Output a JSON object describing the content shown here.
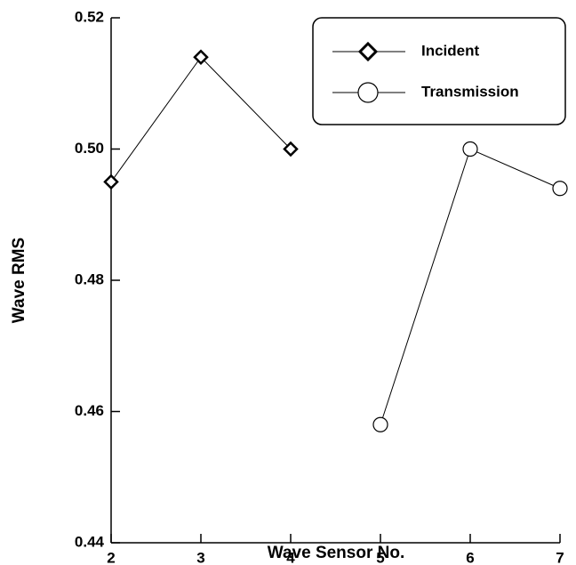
{
  "chart_data": {
    "type": "line",
    "x_label": "Wave Sensor No.",
    "y_label": "Wave RMS",
    "x": [
      2,
      3,
      4,
      5,
      6,
      7
    ],
    "series": [
      {
        "name": "Incident",
        "color": "#000000",
        "marker": "diamond",
        "values": [
          0.495,
          0.514,
          0.5,
          null,
          null,
          null
        ]
      },
      {
        "name": "Transmission",
        "color": "#000000",
        "marker": "circle",
        "values": [
          null,
          null,
          null,
          0.458,
          0.5,
          0.494
        ]
      }
    ],
    "xlim": [
      2,
      7
    ],
    "xticks": [
      2,
      3,
      4,
      5,
      6,
      7
    ],
    "ylim": [
      0.44,
      0.52
    ],
    "yticks": [
      0.44,
      0.46,
      0.48,
      {
        "value": 0.5,
        "label": "0.50"
      },
      0.52
    ],
    "grid": false,
    "legend": "upper right"
  }
}
